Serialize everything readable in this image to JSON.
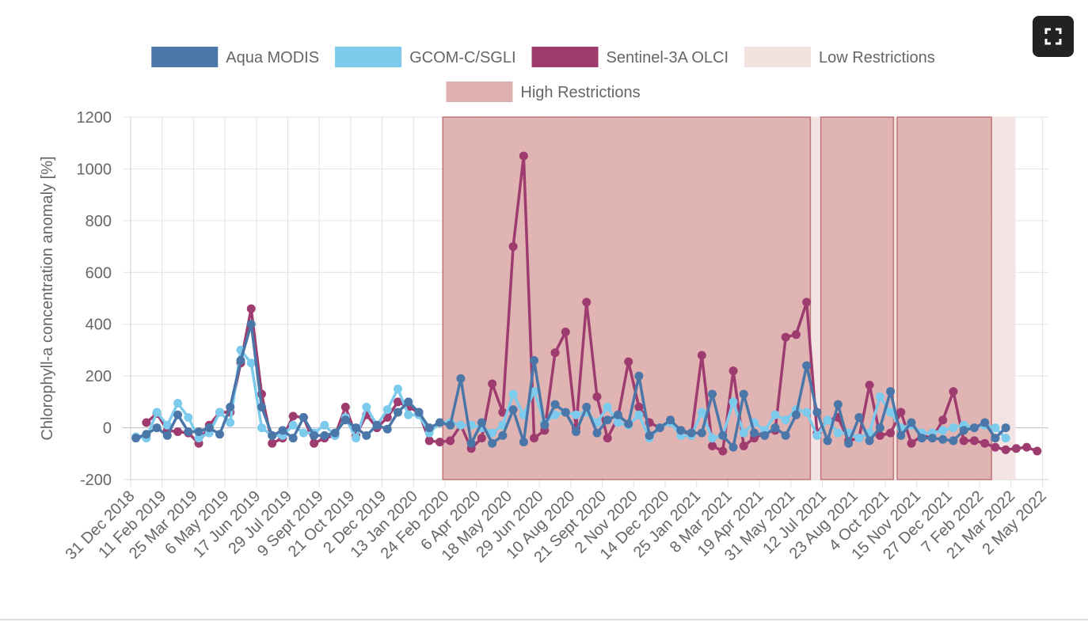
{
  "chart_data": {
    "type": "line",
    "y_label": "Chlorophyll-a concentration anomaly [%]",
    "ylim": [
      -200,
      1200
    ],
    "yticks": [
      -200,
      0,
      200,
      400,
      600,
      800,
      1000,
      1200
    ],
    "xlim": [
      "2018-12-31",
      "2022-05-10"
    ],
    "xticks": [
      {
        "value": "2018-12-31",
        "label": "31 Dec 2018"
      },
      {
        "value": "2019-02-11",
        "label": "11 Feb 2019"
      },
      {
        "value": "2019-03-25",
        "label": "25 Mar 2019"
      },
      {
        "value": "2019-05-06",
        "label": "6 May 2019"
      },
      {
        "value": "2019-06-17",
        "label": "17 Jun 2019"
      },
      {
        "value": "2019-07-29",
        "label": "29 Jul 2019"
      },
      {
        "value": "2019-09-09",
        "label": "9 Sept 2019"
      },
      {
        "value": "2019-10-21",
        "label": "21 Oct 2019"
      },
      {
        "value": "2019-12-02",
        "label": "2 Dec 2019"
      },
      {
        "value": "2020-01-13",
        "label": "13 Jan 2020"
      },
      {
        "value": "2020-02-24",
        "label": "24 Feb 2020"
      },
      {
        "value": "2020-04-06",
        "label": "6 Apr 2020"
      },
      {
        "value": "2020-05-18",
        "label": "18 May 2020"
      },
      {
        "value": "2020-06-29",
        "label": "29 Jun 2020"
      },
      {
        "value": "2020-08-10",
        "label": "10 Aug 2020"
      },
      {
        "value": "2020-09-21",
        "label": "21 Sept 2020"
      },
      {
        "value": "2020-11-02",
        "label": "2 Nov 2020"
      },
      {
        "value": "2020-12-14",
        "label": "14 Dec 2020"
      },
      {
        "value": "2021-01-25",
        "label": "25 Jan 2021"
      },
      {
        "value": "2021-03-08",
        "label": "8 Mar 2021"
      },
      {
        "value": "2021-04-19",
        "label": "19 Apr 2021"
      },
      {
        "value": "2021-05-31",
        "label": "31 May 2021"
      },
      {
        "value": "2021-07-12",
        "label": "12 Jul 2021"
      },
      {
        "value": "2021-08-23",
        "label": "23 Aug 2021"
      },
      {
        "value": "2021-10-04",
        "label": "4 Oct 2021"
      },
      {
        "value": "2021-11-15",
        "label": "15 Nov 2021"
      },
      {
        "value": "2021-12-27",
        "label": "27 Dec 2021"
      },
      {
        "value": "2022-02-07",
        "label": "7 Feb 2022"
      },
      {
        "value": "2022-03-21",
        "label": "21 Mar 2022"
      },
      {
        "value": "2022-05-02",
        "label": "2 May 2022"
      }
    ],
    "grid": true,
    "x": [
      "2019-01-07",
      "2019-01-21",
      "2019-02-04",
      "2019-02-18",
      "2019-03-04",
      "2019-03-18",
      "2019-04-01",
      "2019-04-15",
      "2019-04-29",
      "2019-05-13",
      "2019-05-27",
      "2019-06-10",
      "2019-06-24",
      "2019-07-08",
      "2019-07-22",
      "2019-08-05",
      "2019-08-19",
      "2019-09-02",
      "2019-09-16",
      "2019-09-30",
      "2019-10-14",
      "2019-10-28",
      "2019-11-11",
      "2019-11-25",
      "2019-12-09",
      "2019-12-23",
      "2020-01-06",
      "2020-01-20",
      "2020-02-03",
      "2020-02-17",
      "2020-03-02",
      "2020-03-16",
      "2020-03-30",
      "2020-04-13",
      "2020-04-27",
      "2020-05-11",
      "2020-05-25",
      "2020-06-08",
      "2020-06-22",
      "2020-07-06",
      "2020-07-20",
      "2020-08-03",
      "2020-08-17",
      "2020-08-31",
      "2020-09-14",
      "2020-09-28",
      "2020-10-12",
      "2020-10-26",
      "2020-11-09",
      "2020-11-23",
      "2020-12-07",
      "2020-12-21",
      "2021-01-04",
      "2021-01-18",
      "2021-02-01",
      "2021-02-15",
      "2021-03-01",
      "2021-03-15",
      "2021-03-29",
      "2021-04-12",
      "2021-04-26",
      "2021-05-10",
      "2021-05-24",
      "2021-06-07",
      "2021-06-21",
      "2021-07-05",
      "2021-07-19",
      "2021-08-02",
      "2021-08-16",
      "2021-08-30",
      "2021-09-13",
      "2021-09-27",
      "2021-10-11",
      "2021-10-25",
      "2021-11-08",
      "2021-11-22",
      "2021-12-06",
      "2021-12-20",
      "2022-01-03",
      "2022-01-17",
      "2022-01-31",
      "2022-02-14",
      "2022-02-28",
      "2022-03-14",
      "2022-03-28",
      "2022-04-11",
      "2022-04-25"
    ],
    "series": [
      {
        "name": "Aqua MODIS",
        "color": "#4a76a8",
        "values": [
          -40,
          -25,
          0,
          -30,
          50,
          -15,
          -15,
          0,
          -25,
          80,
          260,
          400,
          80,
          -30,
          -10,
          -40,
          40,
          -30,
          -30,
          -20,
          30,
          0,
          -30,
          10,
          -5,
          60,
          100,
          60,
          0,
          20,
          10,
          190,
          -60,
          20,
          -60,
          -30,
          70,
          -55,
          260,
          10,
          90,
          60,
          -15,
          80,
          -20,
          30,
          50,
          15,
          200,
          -30,
          0,
          30,
          -10,
          -20,
          -20,
          130,
          -30,
          -75,
          130,
          -20,
          -30,
          0,
          -30,
          50,
          240,
          60,
          -50,
          90,
          -60,
          40,
          -50,
          0,
          140,
          -30,
          20,
          -40,
          -40,
          -45,
          -50,
          -10,
          0,
          20,
          -40,
          0,
          null,
          null,
          null
        ]
      },
      {
        "name": "GCOM-C/SGLI",
        "color": "#7ccbec",
        "values": [
          -35,
          -40,
          60,
          10,
          95,
          40,
          -40,
          -20,
          60,
          20,
          300,
          250,
          0,
          -30,
          -30,
          10,
          -20,
          -20,
          10,
          -30,
          40,
          -40,
          80,
          10,
          70,
          150,
          50,
          50,
          -20,
          20,
          20,
          10,
          10,
          0,
          -20,
          10,
          130,
          50,
          140,
          20,
          50,
          60,
          50,
          60,
          20,
          80,
          20,
          10,
          50,
          -40,
          0,
          20,
          -30,
          -30,
          60,
          -40,
          -30,
          100,
          -20,
          20,
          -10,
          50,
          30,
          70,
          60,
          -30,
          30,
          -20,
          -20,
          -40,
          -20,
          120,
          60,
          0,
          10,
          -20,
          -20,
          -10,
          0,
          10,
          0,
          10,
          0,
          -40,
          null,
          null,
          null
        ]
      },
      {
        "name": "Sentinel-3A OLCI",
        "color": "#9e3b6f",
        "values": [
          null,
          20,
          55,
          -10,
          -15,
          -20,
          -60,
          10,
          60,
          60,
          250,
          460,
          130,
          -60,
          -40,
          45,
          40,
          -60,
          -40,
          -30,
          80,
          -30,
          50,
          0,
          40,
          100,
          80,
          60,
          -50,
          -55,
          -50,
          10,
          -80,
          -40,
          170,
          60,
          700,
          1050,
          -40,
          -10,
          290,
          370,
          0,
          485,
          120,
          -40,
          40,
          255,
          80,
          20,
          0,
          20,
          -10,
          -30,
          280,
          -70,
          -90,
          220,
          -70,
          -40,
          -20,
          -10,
          350,
          360,
          485,
          -20,
          30,
          40,
          -50,
          -40,
          165,
          -30,
          -20,
          60,
          -60,
          -30,
          -40,
          30,
          140,
          -50,
          -50,
          -60,
          -75,
          -85,
          -80,
          -75,
          -90
        ]
      }
    ],
    "bands": [
      {
        "name": "Low Restrictions",
        "color": "#f2e2e0",
        "ranges": [
          [
            "2021-06-26",
            "2021-07-10"
          ],
          [
            "2021-10-15",
            "2021-10-20"
          ],
          [
            "2022-02-23",
            "2022-03-27"
          ]
        ]
      },
      {
        "name": "High Restrictions",
        "color": "#dfb0b0",
        "border": "#c07577",
        "ranges": [
          [
            "2020-02-21",
            "2021-06-26"
          ],
          [
            "2021-07-10",
            "2021-10-15"
          ],
          [
            "2021-10-20",
            "2022-02-23"
          ]
        ]
      }
    ]
  }
}
